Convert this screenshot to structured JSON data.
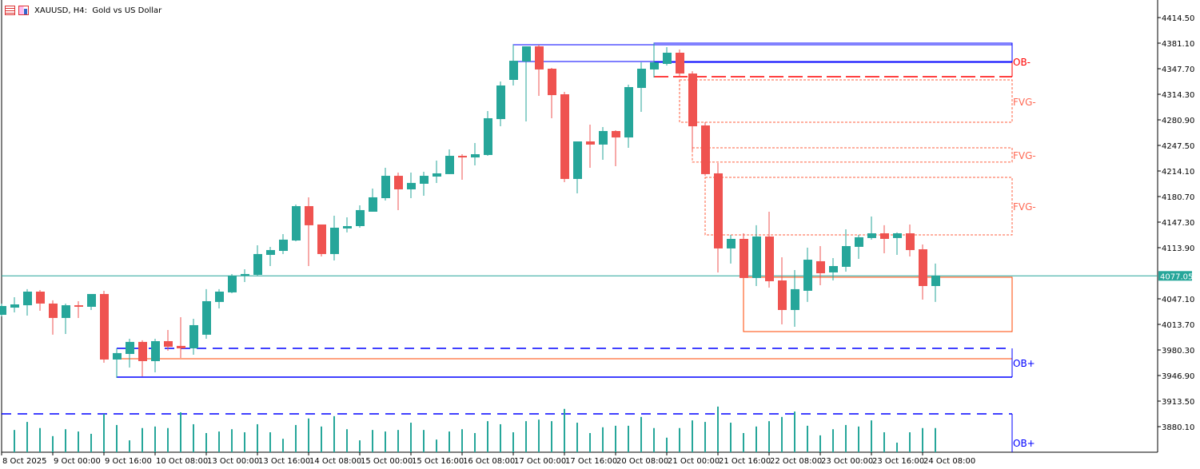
{
  "header": {
    "title": "XAUUSD, H4:  Gold vs US Dollar",
    "icons": [
      "chart-list-icon",
      "symbol-icon"
    ]
  },
  "colors": {
    "bull": "#26a69a",
    "bear": "#ef5350",
    "ob_line": "#0000ff",
    "ob_minus_label": "#ff0000",
    "fvg": "#ff5f3f",
    "zone": "#ff4500",
    "price_line": "#26a69a"
  },
  "chart_data": {
    "type": "candlestick",
    "symbol": "XAUUSD",
    "timeframe": "H4",
    "ylim": [
      3850.0,
      4435.0
    ],
    "y_ticks": [
      "4414.50",
      "4381.10",
      "4347.70",
      "4314.30",
      "4280.90",
      "4247.50",
      "4214.10",
      "4180.70",
      "4147.30",
      "4113.90",
      "4047.10",
      "4013.70",
      "3980.30",
      "3946.90",
      "3913.50",
      "3880.10"
    ],
    "current_price": "4077.05",
    "x_ticks": [
      {
        "index": 0,
        "label": "8 Oct 2025"
      },
      {
        "index": 4,
        "label": "9 Oct 00:00"
      },
      {
        "index": 8,
        "label": "9 Oct 16:00"
      },
      {
        "index": 12,
        "label": "10 Oct 08:00"
      },
      {
        "index": 16,
        "label": "13 Oct 00:00"
      },
      {
        "index": 20,
        "label": "13 Oct 16:00"
      },
      {
        "index": 24,
        "label": "14 Oct 08:00"
      },
      {
        "index": 28,
        "label": "15 Oct 00:00"
      },
      {
        "index": 32,
        "label": "15 Oct 16:00"
      },
      {
        "index": 36,
        "label": "16 Oct 08:00"
      },
      {
        "index": 40,
        "label": "17 Oct 00:00"
      },
      {
        "index": 44,
        "label": "17 Oct 16:00"
      },
      {
        "index": 48,
        "label": "20 Oct 08:00"
      },
      {
        "index": 52,
        "label": "21 Oct 00:00"
      },
      {
        "index": 56,
        "label": "21 Oct 16:00"
      },
      {
        "index": 60,
        "label": "22 Oct 08:00"
      },
      {
        "index": 64,
        "label": "23 Oct 00:00"
      },
      {
        "index": 68,
        "label": "23 Oct 16:00"
      },
      {
        "index": 72,
        "label": "24 Oct 08:00"
      }
    ],
    "ohlc_fields": [
      "open",
      "high",
      "low",
      "close"
    ],
    "candles": [
      [
        4026.2,
        4040.9,
        4024.2,
        4037.7
      ],
      [
        4035.6,
        4049.2,
        4029.4,
        4039.8
      ],
      [
        4038.7,
        4059.7,
        4025.2,
        4056.5
      ],
      [
        4056.5,
        4058.6,
        4031.5,
        4040.9
      ],
      [
        4040.9,
        4045.1,
        4000.2,
        4022.1
      ],
      [
        4022.1,
        4040.9,
        4001.2,
        4038.7
      ],
      [
        4038.7,
        4044.0,
        4022.1,
        4036.7
      ],
      [
        4036.7,
        4053.4,
        4032.5,
        4053.4
      ],
      [
        4053.4,
        4057.6,
        3963.6,
        3967.8
      ],
      [
        3967.8,
        3982.4,
        3943.8,
        3976.2
      ],
      [
        3975.1,
        3994.9,
        3957.4,
        3990.8
      ],
      [
        3990.8,
        3992.9,
        3945.9,
        3965.7
      ],
      [
        3965.7,
        3994.9,
        3951.1,
        3991.8
      ],
      [
        3991.8,
        4006.4,
        3979.3,
        3984.5
      ],
      [
        3985.6,
        4023.1,
        3969.9,
        3982.4
      ],
      [
        3982.4,
        4021.0,
        3974.1,
        4012.7
      ],
      [
        4000.2,
        4059.7,
        3994.9,
        4044.0
      ],
      [
        4043.0,
        4059.7,
        4034.6,
        4056.5
      ],
      [
        4055.5,
        4079.5,
        4054.4,
        4077.4
      ],
      [
        4077.4,
        4085.7,
        4069.0,
        4079.5
      ],
      [
        4078.4,
        4117.0,
        4077.4,
        4105.6
      ],
      [
        4104.5,
        4115.0,
        4089.9,
        4110.8
      ],
      [
        4109.7,
        4131.7,
        4105.6,
        4124.4
      ],
      [
        4123.3,
        4170.3,
        4122.3,
        4168.2
      ],
      [
        4168.2,
        4179.7,
        4089.9,
        4143.2
      ],
      [
        4144.2,
        4144.2,
        4102.4,
        4105.6
      ],
      [
        4105.6,
        4155.7,
        4097.2,
        4140.0
      ],
      [
        4139.0,
        4153.6,
        4133.8,
        4142.1
      ],
      [
        4142.1,
        4169.2,
        4140.0,
        4163.0
      ],
      [
        4160.9,
        4191.2,
        4160.9,
        4179.7
      ],
      [
        4178.6,
        4218.3,
        4175.5,
        4207.8
      ],
      [
        4207.8,
        4212.0,
        4163.0,
        4190.1
      ],
      [
        4190.1,
        4212.0,
        4178.6,
        4198.5
      ],
      [
        4197.4,
        4213.1,
        4181.7,
        4207.8
      ],
      [
        4206.8,
        4227.7,
        4198.5,
        4211.0
      ],
      [
        4210.0,
        4242.3,
        4210.0,
        4233.9
      ],
      [
        4233.9,
        4236.0,
        4202.6,
        4231.8
      ],
      [
        4231.8,
        4250.6,
        4221.4,
        4236.0
      ],
      [
        4235.0,
        4292.4,
        4233.9,
        4283.0
      ],
      [
        4281.9,
        4331.0,
        4272.5,
        4325.8
      ],
      [
        4333.1,
        4379.0,
        4325.8,
        4358.1
      ],
      [
        4357.1,
        4376.9,
        4278.8,
        4376.9
      ],
      [
        4376.9,
        4379.0,
        4312.2,
        4346.7
      ],
      [
        4347.7,
        4348.7,
        4283.0,
        4313.2
      ],
      [
        4314.3,
        4317.4,
        4199.5,
        4203.7
      ],
      [
        4203.7,
        4252.7,
        4184.9,
        4252.7
      ],
      [
        4252.7,
        4274.6,
        4218.3,
        4248.6
      ],
      [
        4248.6,
        4271.5,
        4228.7,
        4266.3
      ],
      [
        4266.3,
        4267.3,
        4220.3,
        4257.9
      ],
      [
        4257.9,
        4326.8,
        4244.4,
        4323.7
      ],
      [
        4322.6,
        4356.0,
        4291.3,
        4347.7
      ],
      [
        4346.7,
        4381.1,
        4336.2,
        4356.0
      ],
      [
        4354.0,
        4375.9,
        4351.9,
        4368.6
      ],
      [
        4368.6,
        4372.8,
        4338.3,
        4341.4
      ],
      [
        4341.4,
        4344.5,
        4241.3,
        4272.5
      ],
      [
        4273.6,
        4277.8,
        4208.0,
        4210.0
      ],
      [
        4211.0,
        4224.6,
        4081.6,
        4112.9
      ],
      [
        4112.9,
        4130.6,
        4093.1,
        4125.4
      ],
      [
        4125.4,
        4132.7,
        4074.3,
        4074.3
      ],
      [
        4074.3,
        4143.2,
        4063.8,
        4128.5
      ],
      [
        4128.5,
        4160.9,
        4061.7,
        4070.1
      ],
      [
        4071.1,
        4101.4,
        4013.7,
        4032.5
      ],
      [
        4032.5,
        4084.7,
        4010.6,
        4059.7
      ],
      [
        4057.6,
        4113.9,
        4043.0,
        4098.2
      ],
      [
        4096.2,
        4116.0,
        4064.9,
        4080.5
      ],
      [
        4081.6,
        4100.3,
        4071.1,
        4089.9
      ],
      [
        4088.9,
        4137.9,
        4082.6,
        4116.0
      ],
      [
        4115.0,
        4130.6,
        4099.3,
        4127.5
      ],
      [
        4126.5,
        4154.6,
        4124.4,
        4132.7
      ],
      [
        4132.7,
        4143.2,
        4106.6,
        4125.4
      ],
      [
        4126.5,
        4133.8,
        4104.5,
        4132.7
      ],
      [
        4132.7,
        4144.2,
        4102.4,
        4110.8
      ],
      [
        4111.8,
        4118.1,
        4046.1,
        4063.8
      ],
      [
        4063.8,
        4093.1,
        4043.0,
        4077.05
      ]
    ],
    "volume_relative_to_threshold": [
      0,
      0.58,
      0.79,
      0.63,
      0.42,
      0.6,
      0.54,
      0.48,
      1.0,
      0.71,
      0.31,
      0.63,
      0.67,
      0.63,
      1.04,
      0.73,
      0.5,
      0.54,
      0.6,
      0.52,
      0.73,
      0.52,
      0.35,
      0.71,
      0.88,
      0.67,
      0.94,
      0.6,
      0.31,
      0.58,
      0.54,
      0.58,
      0.77,
      0.58,
      0.33,
      0.54,
      0.6,
      0.5,
      0.81,
      0.73,
      0.52,
      0.81,
      0.85,
      0.81,
      1.13,
      0.77,
      0.5,
      0.65,
      0.69,
      0.69,
      0.92,
      0.63,
      0.38,
      0.63,
      0.83,
      0.79,
      1.19,
      0.77,
      0.5,
      0.67,
      0.81,
      0.92,
      1.06,
      0.69,
      0.44,
      0.6,
      0.71,
      0.67,
      0.83,
      0.52,
      0.25,
      0.52,
      0.63,
      0.63
    ],
    "zones": [
      {
        "name": "ob-minus-box-1",
        "kind": "ob",
        "from_index": 40,
        "to_index": 79,
        "top": 4379.0,
        "bottom": 4357.1
      },
      {
        "name": "ob-minus-box-2",
        "kind": "ob",
        "from_index": 51,
        "to_index": 79,
        "top": 4381.1,
        "bottom": 4356.0
      },
      {
        "name": "fvg-minus-box-1",
        "kind": "fvg",
        "from_index": 53,
        "to_index": 79,
        "top": 4333.1,
        "bottom": 4277.8
      },
      {
        "name": "fvg-minus-box-2",
        "kind": "fvg",
        "from_index": 54,
        "to_index": 79,
        "top": 4244.4,
        "bottom": 4225.7
      },
      {
        "name": "fvg-minus-box-3",
        "kind": "fvg",
        "from_index": 55,
        "to_index": 79,
        "top": 4205.8,
        "bottom": 4130.6
      },
      {
        "name": "range-box",
        "kind": "zone",
        "from_index": 58,
        "to_index": 79,
        "top": 4075.3,
        "bottom": 4004.3
      },
      {
        "name": "ob-plus-box",
        "kind": "obplus",
        "from_index": 9,
        "to_index": 79,
        "top": 3982.4,
        "bottom": 3944.8,
        "mid": 3968.8
      }
    ],
    "ob_minus_dashed_level": {
      "from_index": 51,
      "to_index": 79,
      "price": 4337.3,
      "joins": 4356.0
    },
    "labels": [
      {
        "text": "OB-",
        "price": 4357.1,
        "color": "#ff0000"
      },
      {
        "text": "FVG-",
        "price": 4305.0,
        "color": "#ff6a55"
      },
      {
        "text": "FVG-",
        "price": 4235.0,
        "color": "#ff6a55"
      },
      {
        "text": "FVG-",
        "price": 4168.0,
        "color": "#ff6a55"
      },
      {
        "text": "OB+",
        "price": 3963.6,
        "color": "#0000ff"
      }
    ],
    "volume_label": "OB+"
  }
}
